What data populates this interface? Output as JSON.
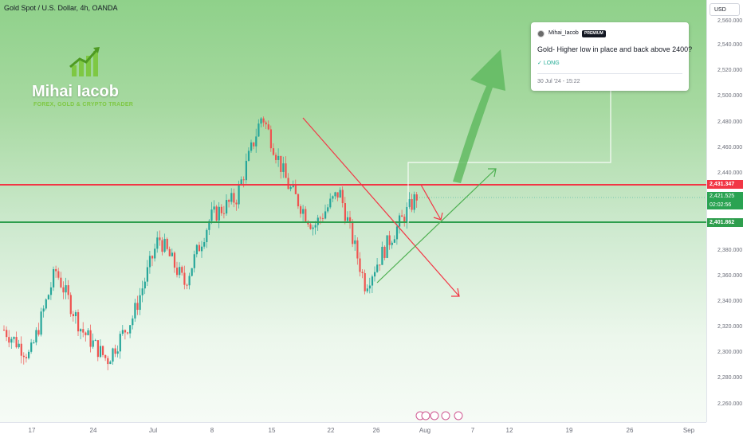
{
  "symbol": {
    "title": "Gold Spot / U.S. Dollar, 4h, OANDA",
    "currency": "USD"
  },
  "branding": {
    "name": "Mihai Iacob",
    "tagline": "FOREX, GOLD & CRYPTO TRADER"
  },
  "idea_card": {
    "author": "Mihai_Iacob",
    "badge": "PREMIUM",
    "title": "Gold- Higher low in place and back above 2400?",
    "direction": "LONG",
    "direction_icon": "trend-up-icon",
    "date": "30 Jul '24 - 15:22"
  },
  "price_axis": {
    "ticks": [
      "2,560.000",
      "2,540.000",
      "2,520.000",
      "2,500.000",
      "2,480.000",
      "2,460.000",
      "2,440.000",
      "2,380.000",
      "2,360.000",
      "2,340.000",
      "2,320.000",
      "2,300.000",
      "2,280.000",
      "2,260.000"
    ],
    "resistance_label": "2,431.347",
    "current_price": "2,421.525",
    "countdown": "02:02:56",
    "support_label": "2,401.862"
  },
  "time_axis": {
    "ticks": [
      "17",
      "24",
      "Jul",
      "8",
      "15",
      "22",
      "26",
      "Aug",
      "7",
      "12",
      "19",
      "26",
      "Sep"
    ]
  },
  "chart_data": {
    "type": "candlestick",
    "instrument": "XAUUSD",
    "timeframe": "4h",
    "ylim": [
      2250,
      2570
    ],
    "resistance": 2431.347,
    "support": 2401.862,
    "current_price": 2421.525,
    "colors": {
      "up": "#26a69a",
      "down": "#ef5350",
      "resistance": "#f23645",
      "support": "#2e9e4d",
      "projection": "#4caf50"
    },
    "swing_path": [
      {
        "label": "mid-Jun",
        "price": 2320
      },
      {
        "label": "19 Jun",
        "price": 2300
      },
      {
        "label": "20 Jun",
        "price": 2365
      },
      {
        "label": "24 Jun",
        "price": 2320
      },
      {
        "label": "27 Jun",
        "price": 2297
      },
      {
        "label": "Jul",
        "price": 2330
      },
      {
        "label": "8 Jul",
        "price": 2390
      },
      {
        "label": "10 Jul",
        "price": 2355
      },
      {
        "label": "12 Jul",
        "price": 2405
      },
      {
        "label": "15 Jul",
        "price": 2420
      },
      {
        "label": "17 Jul",
        "price": 2483
      },
      {
        "label": "19 Jul",
        "price": 2430
      },
      {
        "label": "22 Jul",
        "price": 2398
      },
      {
        "label": "24 Jul",
        "price": 2425
      },
      {
        "label": "25 Jul",
        "price": 2354
      },
      {
        "label": "29 Jul",
        "price": 2390
      },
      {
        "label": "30 Jul",
        "price": 2421.5
      }
    ]
  }
}
